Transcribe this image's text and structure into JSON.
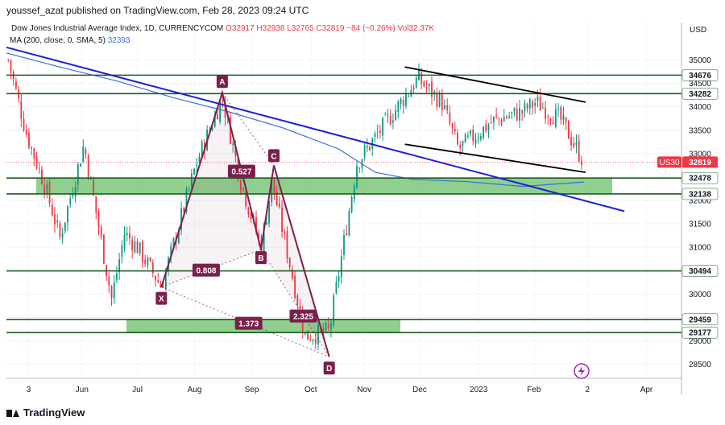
{
  "header": {
    "publisher": "youssef_azat published on TradingView.com, Feb 28, 2023 09:24 UTC"
  },
  "legend": {
    "symbol": "Dow Jones Industrial Average Index, 1D, CURRENCYCOM",
    "open": "O32917",
    "high": "H32938",
    "low": "L32765",
    "close": "C32819",
    "change": "−84 (−0.26%)",
    "volume": "Vol32.37K",
    "indicator": "MA (200, close, 0, SMA, 5)",
    "indicator_value": "32393"
  },
  "footer": {
    "brand": "TradingView"
  },
  "colors": {
    "up": "#089981",
    "down": "#f23645",
    "trendline": "#1f1fd6",
    "channel": "#000000",
    "levels": "#1b5e20",
    "zone": "#6abf69",
    "pattern": "#7b1f4b",
    "ma": "#3a6fd8",
    "badge": "#f23645"
  },
  "chart_data": {
    "type": "candlestick",
    "title": "Dow Jones Industrial Average Index, 1D, CURRENCYCOM",
    "currency": "USD",
    "ylim": [
      28200,
      35800
    ],
    "y_ticks": [
      28500,
      29000,
      29500,
      30000,
      30500,
      31000,
      31500,
      32000,
      32500,
      33000,
      33500,
      34000,
      34500,
      35000
    ],
    "x_ticks": [
      "3",
      "Jun",
      "Jul",
      "Aug",
      "Sep",
      "Oct",
      "Nov",
      "Dec",
      "2023",
      "Feb",
      "2",
      "Apr"
    ],
    "last_price": {
      "label": "US30",
      "value": "32819"
    },
    "levels": [
      "34676",
      "34282",
      "32478",
      "32138",
      "30494",
      "29459",
      "29177"
    ],
    "zones": [
      {
        "from": 32138,
        "to": 32478
      },
      {
        "from": 29177,
        "to": 29459
      }
    ],
    "harmonic": {
      "points": [
        {
          "label": "X",
          "date": "2022-07-14",
          "price": 30150
        },
        {
          "label": "A",
          "date": "2022-08-16",
          "price": 34300
        },
        {
          "label": "B",
          "date": "2022-09-06",
          "price": 30950
        },
        {
          "label": "C",
          "date": "2022-09-13",
          "price": 32750
        },
        {
          "label": "D",
          "date": "2022-10-13",
          "price": 28660
        }
      ],
      "ratios": [
        "0.527",
        "0.808",
        "2.325",
        "1.373"
      ]
    },
    "trendline": [
      {
        "date": "2022-04-21",
        "price": 35270
      },
      {
        "date": "2023-03-22",
        "price": 31770
      }
    ],
    "channel": [
      [
        {
          "date": "2022-11-23",
          "price": 34850
        },
        {
          "date": "2023-03-01",
          "price": 34100
        }
      ],
      [
        {
          "date": "2022-11-23",
          "price": 33200
        },
        {
          "date": "2023-03-01",
          "price": 32600
        }
      ]
    ],
    "ma_series": [
      {
        "date": "2022-04-21",
        "value": 35150
      },
      {
        "date": "2022-05-20",
        "value": 34850
      },
      {
        "date": "2022-06-20",
        "value": 34550
      },
      {
        "date": "2022-07-20",
        "value": 34200
      },
      {
        "date": "2022-08-19",
        "value": 33900
      },
      {
        "date": "2022-09-18",
        "value": 33550
      },
      {
        "date": "2022-10-18",
        "value": 33100
      },
      {
        "date": "2022-11-07",
        "value": 32600
      },
      {
        "date": "2022-11-27",
        "value": 32450
      },
      {
        "date": "2022-12-27",
        "value": 32400
      },
      {
        "date": "2023-01-26",
        "value": 32300
      },
      {
        "date": "2023-02-28",
        "value": 32393
      }
    ],
    "price_path": [
      {
        "date": "2022-04-22",
        "close": 35000
      },
      {
        "date": "2022-05-02",
        "close": 33400
      },
      {
        "date": "2022-05-12",
        "close": 32300
      },
      {
        "date": "2022-05-20",
        "close": 31200
      },
      {
        "date": "2022-06-02",
        "close": 33200
      },
      {
        "date": "2022-06-17",
        "close": 29900
      },
      {
        "date": "2022-06-24",
        "close": 31300
      },
      {
        "date": "2022-07-01",
        "close": 31000
      },
      {
        "date": "2022-07-14",
        "close": 30150
      },
      {
        "date": "2022-08-02",
        "close": 32800
      },
      {
        "date": "2022-08-16",
        "close": 34200
      },
      {
        "date": "2022-08-26",
        "close": 32400
      },
      {
        "date": "2022-09-06",
        "close": 31000
      },
      {
        "date": "2022-09-12",
        "close": 32400
      },
      {
        "date": "2022-09-30",
        "close": 29100
      },
      {
        "date": "2022-10-13",
        "close": 29200
      },
      {
        "date": "2022-10-28",
        "close": 32800
      },
      {
        "date": "2022-11-30",
        "close": 34600
      },
      {
        "date": "2022-12-13",
        "close": 34100
      },
      {
        "date": "2022-12-22",
        "close": 33100
      },
      {
        "date": "2023-01-10",
        "close": 33700
      },
      {
        "date": "2023-01-26",
        "close": 33900
      },
      {
        "date": "2023-02-02",
        "close": 34100
      },
      {
        "date": "2023-02-16",
        "close": 33700
      },
      {
        "date": "2023-02-28",
        "close": 32819
      }
    ],
    "xlabel": "",
    "ylabel": "",
    "grid": true
  }
}
